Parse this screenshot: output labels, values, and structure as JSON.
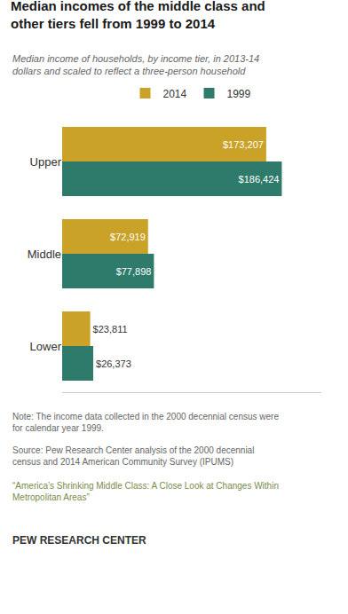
{
  "chart_data": {
    "type": "bar",
    "orientation": "horizontal",
    "title": "Median incomes of the middle class and\nother tiers fell from 1999 to 2014",
    "subtitle": "Median income of households, by income tier, in 2013-14\ndollars and scaled to reflect a three-person household",
    "categories": [
      "Upper",
      "Middle",
      "Lower"
    ],
    "series": [
      {
        "name": "2014",
        "color": "#C9A227",
        "values": [
          173207,
          72919,
          23811
        ],
        "value_labels": [
          "$173,207",
          "$72,919",
          "$23,811"
        ]
      },
      {
        "name": "1999",
        "color": "#2E7B6B",
        "values": [
          186424,
          77898,
          26373
        ],
        "value_labels": [
          "$186,424",
          "$77,898",
          "$26,373"
        ]
      }
    ],
    "xlim": [
      0,
      220000
    ],
    "data_labels": true,
    "tick_labels": "y",
    "grid": false,
    "legend": "top",
    "annotations": [
      "Note: The income data collected in the 2000 decennial census were\nfor calendar year 1999.",
      "Source: Pew Research Center analysis of the 2000 decennial\ncensus and 2014 American Community Survey (IPUMS)",
      "“America’s Shrinking Middle Class: A Close Look at Changes Within\nMetropolitan Areas”",
      "PEW RESEARCH CENTER"
    ]
  }
}
